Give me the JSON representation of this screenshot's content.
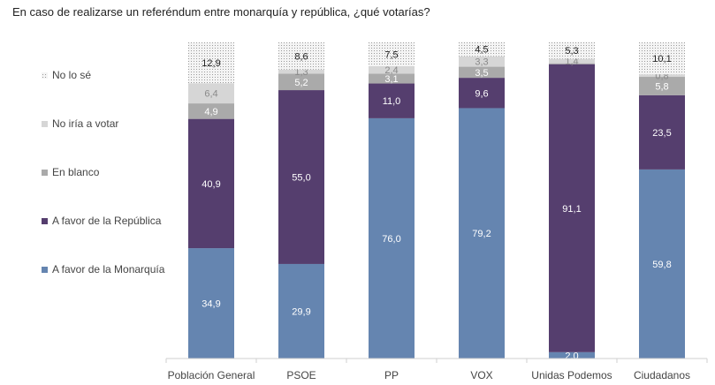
{
  "chart_data": {
    "type": "bar",
    "stacked": true,
    "title": "En caso de realizarse un referéndum entre monarquía y república, ¿qué votarías?",
    "categories": [
      "Población General",
      "PSOE",
      "PP",
      "VOX",
      "Unidas Podemos",
      "Ciudadanos"
    ],
    "ylim": [
      0,
      100
    ],
    "legend_position": "left",
    "series": [
      {
        "name": "A favor de la Monarquía",
        "color": "#6585b0",
        "values": [
          34.9,
          29.9,
          76.0,
          79.2,
          2.0,
          59.8
        ],
        "labels": [
          "34,9",
          "29,9",
          "76,0",
          "79,2",
          "2,0",
          "59,8"
        ]
      },
      {
        "name": "A favor de la República",
        "color": "#553e6e",
        "values": [
          40.9,
          55.0,
          11.0,
          9.6,
          91.1,
          23.5
        ],
        "labels": [
          "40,9",
          "55,0",
          "11,0",
          "9,6",
          "91,1",
          "23,5"
        ]
      },
      {
        "name": "En blanco",
        "color": "#aaaaaa",
        "values": [
          4.9,
          5.2,
          3.1,
          3.5,
          0.3,
          5.8
        ],
        "labels": [
          "4,9",
          "5,2",
          "3,1",
          "3,5",
          "",
          "5,8"
        ]
      },
      {
        "name": "No iría a votar",
        "color": "#d6d6d6",
        "values": [
          6.4,
          1.3,
          2.4,
          3.3,
          1.4,
          0.8
        ],
        "labels": [
          "6,4",
          "1,3",
          "2,4",
          "3,3",
          "1,4",
          "0,8"
        ]
      },
      {
        "name": "No lo sé",
        "color": "#f2f2f2",
        "pattern": "dots",
        "values": [
          12.9,
          8.6,
          7.5,
          4.5,
          5.3,
          10.1
        ],
        "labels": [
          "12,9",
          "8,6",
          "7,5",
          "4,5",
          "5,3",
          "10,1"
        ]
      }
    ],
    "legend": [
      "No lo sé",
      "No iría a votar",
      "En blanco",
      "A favor de la República",
      "A favor de la Monarquía"
    ]
  }
}
